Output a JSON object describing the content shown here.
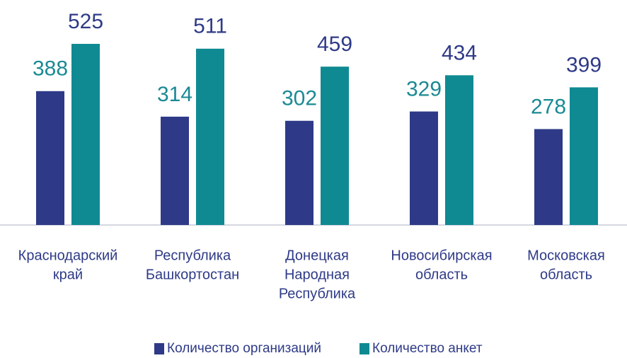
{
  "chart_data": {
    "type": "bar",
    "categories": [
      [
        "Краснодарский",
        "край"
      ],
      [
        "Республика",
        "Башкортостан"
      ],
      [
        "Донецкая",
        "Народная",
        "Республика"
      ],
      [
        "Новосибирская",
        "область"
      ],
      [
        "Московская",
        "область"
      ]
    ],
    "series": [
      {
        "name": "Количество организаций",
        "color": "#2e3a87",
        "label_color": "#1a8a93",
        "values": [
          388,
          314,
          302,
          329,
          278
        ]
      },
      {
        "name": "Количество анкет",
        "color": "#0f8a92",
        "label_color": "#2e3a87",
        "values": [
          525,
          511,
          459,
          434,
          399
        ]
      }
    ],
    "ylim": [
      0,
      525
    ],
    "legend": "bottom"
  }
}
